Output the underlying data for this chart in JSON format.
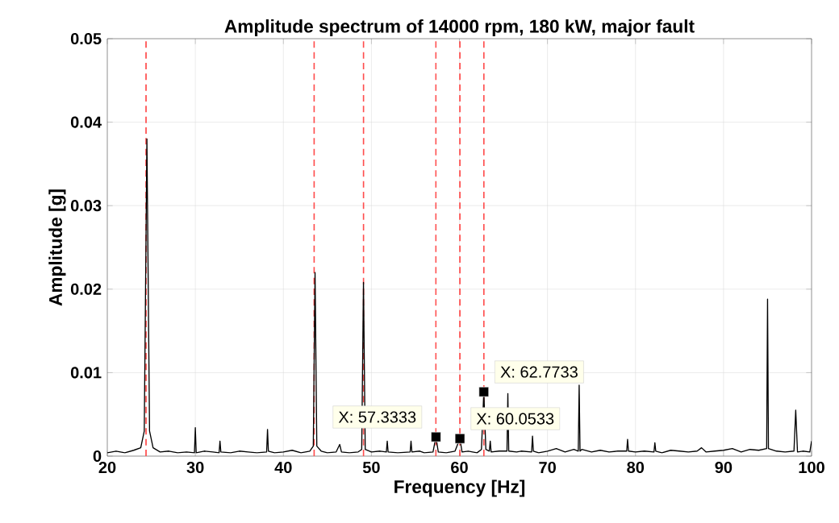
{
  "chart_data": {
    "type": "line",
    "title": "Amplitude spectrum of 14000 rpm, 180 kW, major fault",
    "xlabel": "Frequency [Hz]",
    "ylabel": "Amplitude [g]",
    "xlim": [
      20,
      100
    ],
    "ylim": [
      0,
      0.05
    ],
    "xticks": [
      20,
      30,
      40,
      50,
      60,
      70,
      80,
      90,
      100
    ],
    "yticks": [
      0,
      0.01,
      0.02,
      0.03,
      0.04,
      0.05
    ],
    "grid": true,
    "series": [
      {
        "color": "#000000",
        "marker": "none",
        "x": [
          20,
          21,
          22,
          23,
          23.8,
          24.2,
          24.5,
          24.8,
          25.2,
          26,
          27,
          28,
          29,
          29.9,
          30,
          30.1,
          31,
          32,
          32.7,
          32.8,
          32.9,
          34,
          35,
          36,
          37,
          38.1,
          38.2,
          38.3,
          39,
          40,
          41,
          42,
          43,
          43.4,
          43.6,
          43.8,
          44.3,
          45,
          46,
          46.4,
          46.6,
          47.5,
          48.5,
          48.9,
          49.1,
          49.3,
          50,
          51,
          51.7,
          51.8,
          51.9,
          53,
          54.4,
          54.5,
          54.6,
          55.5,
          56,
          57,
          57.33,
          57.6,
          58.5,
          59.5,
          60.05,
          60.3,
          61,
          62,
          62.5,
          62.77,
          63,
          63.4,
          63.5,
          63.6,
          64.5,
          65.4,
          65.5,
          65.6,
          66.5,
          67,
          68.2,
          68.3,
          68.4,
          69,
          70,
          71,
          72,
          73,
          73.5,
          73.6,
          73.7,
          73.9,
          75,
          76,
          77,
          78,
          79,
          79.1,
          79.2,
          80,
          81,
          82.1,
          82.2,
          82.3,
          83,
          84,
          85,
          86,
          87,
          87.5,
          88,
          89,
          90,
          91,
          92,
          93,
          94,
          94.9,
          95,
          95.1,
          96,
          97,
          98,
          98.2,
          98.4,
          99,
          99.8,
          100
        ],
        "values": [
          0.0004,
          0.0006,
          0.0004,
          0.0007,
          0.001,
          0.003,
          0.038,
          0.003,
          0.001,
          0.0005,
          0.0006,
          0.0004,
          0.0005,
          0.0004,
          0.0034,
          0.0004,
          0.0006,
          0.0005,
          0.0004,
          0.0018,
          0.0005,
          0.0004,
          0.0006,
          0.0005,
          0.0004,
          0.0005,
          0.0032,
          0.0006,
          0.0004,
          0.0005,
          0.0007,
          0.0004,
          0.0006,
          0.0012,
          0.022,
          0.0012,
          0.0006,
          0.0004,
          0.0005,
          0.0014,
          0.0005,
          0.0004,
          0.0005,
          0.0008,
          0.0208,
          0.0008,
          0.0005,
          0.0006,
          0.0005,
          0.0018,
          0.0005,
          0.0004,
          0.0005,
          0.0018,
          0.0005,
          0.0006,
          0.0004,
          0.0005,
          0.0023,
          0.0005,
          0.0004,
          0.0006,
          0.0021,
          0.0005,
          0.0006,
          0.0004,
          0.0008,
          0.0077,
          0.0008,
          0.0006,
          0.0018,
          0.0005,
          0.0006,
          0.0006,
          0.0075,
          0.0006,
          0.0005,
          0.0006,
          0.0005,
          0.0024,
          0.0006,
          0.0004,
          0.0006,
          0.0009,
          0.0005,
          0.0008,
          0.0006,
          0.0085,
          0.0006,
          0.0008,
          0.0005,
          0.0007,
          0.0005,
          0.0006,
          0.0006,
          0.002,
          0.0006,
          0.0005,
          0.0006,
          0.0005,
          0.0016,
          0.0006,
          0.0004,
          0.0007,
          0.0006,
          0.0005,
          0.0006,
          0.001,
          0.0005,
          0.0006,
          0.0007,
          0.0009,
          0.0005,
          0.0008,
          0.0007,
          0.0009,
          0.0188,
          0.0009,
          0.0006,
          0.0005,
          0.0006,
          0.0055,
          0.0005,
          0.0006,
          0.0005,
          0.0018
        ]
      },
      {
        "type": "scatter",
        "color": "#000000",
        "marker": "square",
        "x": [
          57.3333,
          60.0533,
          62.7733
        ],
        "values": [
          0.0023,
          0.0021,
          0.0077
        ]
      }
    ],
    "ref_lines": [
      {
        "axis": "x",
        "value": 24.4,
        "color": "#ff4d4d",
        "line_style": "dashed"
      },
      {
        "axis": "x",
        "value": 43.5,
        "color": "#ff4d4d",
        "line_style": "dashed"
      },
      {
        "axis": "x",
        "value": 49.1,
        "color": "#ff4d4d",
        "line_style": "dashed"
      },
      {
        "axis": "x",
        "value": 57.3333,
        "color": "#ff4d4d",
        "line_style": "dashed"
      },
      {
        "axis": "x",
        "value": 60.0533,
        "color": "#ff4d4d",
        "line_style": "dashed"
      },
      {
        "axis": "x",
        "value": 62.7733,
        "color": "#ff4d4d",
        "line_style": "dashed"
      }
    ],
    "annotations": [
      {
        "text": "X: 57.3333",
        "x": 57.3333,
        "y": 0.0023
      },
      {
        "text": "X: 60.0533",
        "x": 60.0533,
        "y": 0.0021
      },
      {
        "text": "X: 62.7733",
        "x": 62.7733,
        "y": 0.0077
      }
    ]
  }
}
